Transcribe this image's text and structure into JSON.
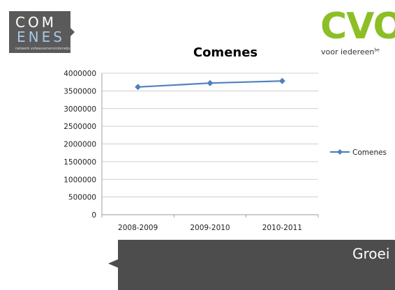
{
  "logos": {
    "comenes_line1": "COM",
    "comenes_line2": "ENES",
    "comenes_tagline": "netwerk volwassenenonderwijs",
    "cvo_text": "CVO",
    "cvo_tagline": "voor iedereen",
    "cvo_tagline_suffix": "be"
  },
  "banner": {
    "text": "Groei"
  },
  "colors": {
    "line": "#4f81bd",
    "logo_box": "#5a5a5a",
    "logo_accent": "#8cbf26",
    "banner": "#4d4d4d"
  },
  "chart_data": {
    "type": "line",
    "title": "Comenes",
    "categories": [
      "2008-2009",
      "2009-2010",
      "2010-2011"
    ],
    "series": [
      {
        "name": "Comenes",
        "values": [
          3610000,
          3720000,
          3780000
        ]
      }
    ],
    "ylim": [
      0,
      4000000
    ],
    "yticks": [
      "0",
      "500000",
      "1000000",
      "1500000",
      "2000000",
      "2500000",
      "3000000",
      "3500000",
      "4000000"
    ],
    "grid": true,
    "legend": "right"
  }
}
